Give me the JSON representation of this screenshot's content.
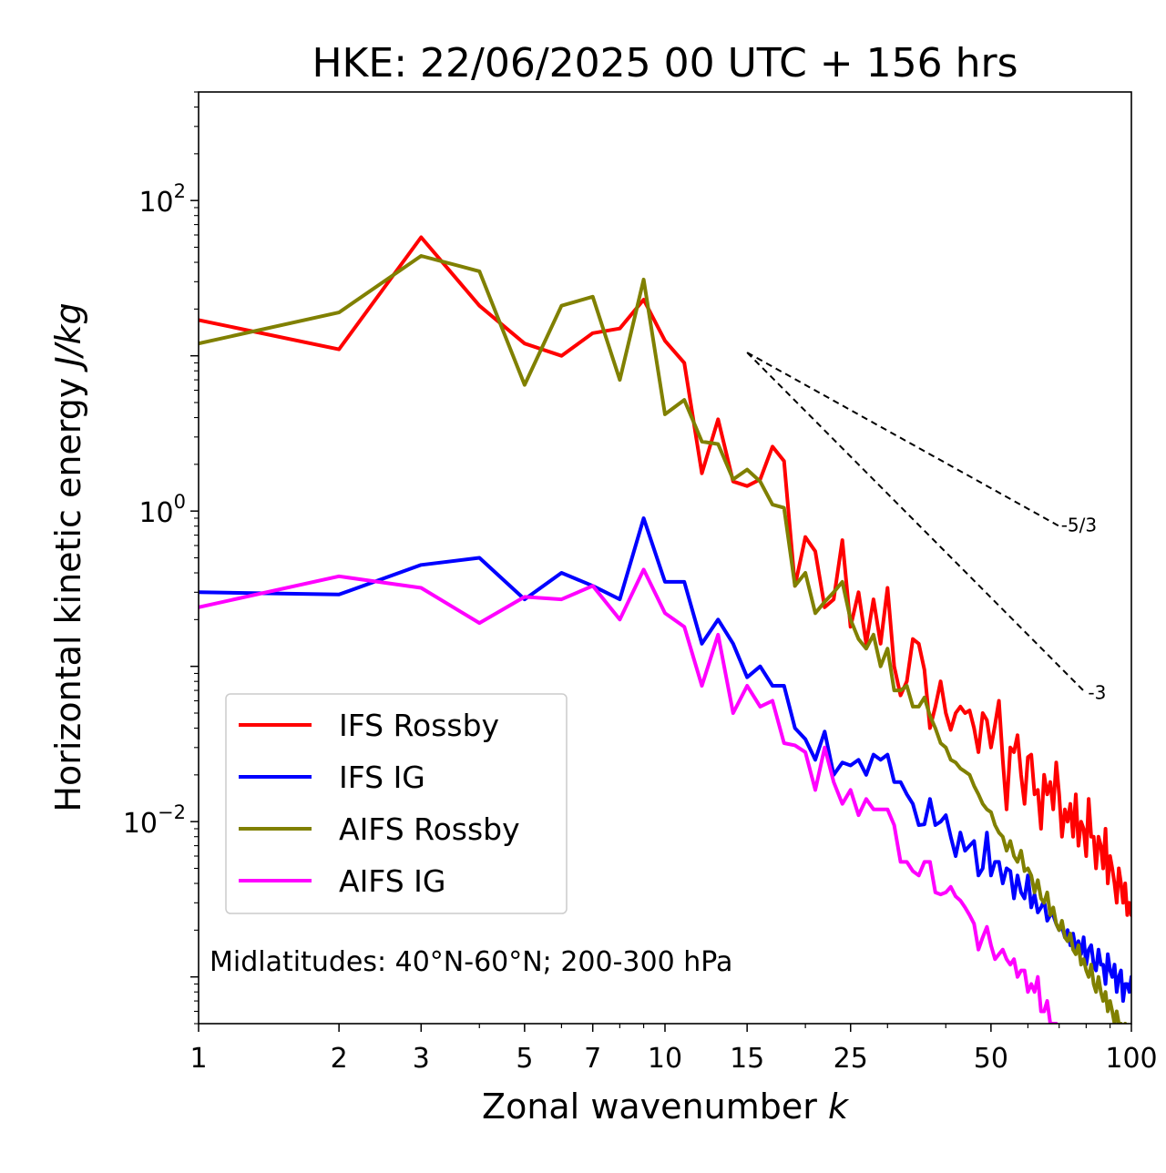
{
  "chart_data": {
    "type": "line",
    "title": "HKE: 22/06/2025 00 UTC + 156 hrs",
    "xlabel": "Zonal wavenumber",
    "xlabel_var": "k",
    "ylabel": "Horizontal kinetic energy",
    "ylabel_unit": "J/kg",
    "xscale": "log",
    "yscale": "log",
    "xlim": [
      1,
      100
    ],
    "ylim": [
      0.0005,
      500
    ],
    "x_ticks": [
      {
        "value": 1,
        "label": "1"
      },
      {
        "value": 2,
        "label": "2"
      },
      {
        "value": 3,
        "label": "3"
      },
      {
        "value": 5,
        "label": "5"
      },
      {
        "value": 7,
        "label": "7"
      },
      {
        "value": 10,
        "label": "10"
      },
      {
        "value": 15,
        "label": "15"
      },
      {
        "value": 25,
        "label": "25"
      },
      {
        "value": 50,
        "label": "50"
      },
      {
        "value": 100,
        "label": "100"
      }
    ],
    "y_ticks": [
      {
        "value": 100,
        "base": "10",
        "exp": "2"
      },
      {
        "value": 1,
        "base": "10",
        "exp": "0"
      },
      {
        "value": 0.01,
        "base": "10",
        "exp": "−2"
      }
    ],
    "grid": false,
    "legend_position": "lower-left",
    "annotation": "Midlatitudes: 40°N-60°N; 200-300 hPa",
    "reference_lines": [
      {
        "label": "-5/3",
        "x": [
          15,
          70
        ],
        "y": [
          10.5,
          0.8
        ]
      },
      {
        "label": "-3",
        "x": [
          15,
          80
        ],
        "y": [
          10.5,
          0.067
        ]
      }
    ],
    "series": [
      {
        "name": "IFS Rossby",
        "color": "#ff0000",
        "x": [
          1,
          2,
          3,
          4,
          5,
          6,
          7,
          8,
          9,
          10,
          11,
          12,
          13,
          14,
          15,
          16,
          17,
          18,
          19,
          20,
          21,
          22,
          23,
          24,
          25,
          26,
          27,
          28,
          29,
          30,
          31,
          32,
          33,
          34,
          35,
          36,
          37,
          38,
          39,
          40,
          41,
          42,
          43,
          44,
          45,
          46,
          47,
          48,
          49,
          50,
          51,
          52,
          53,
          54,
          55,
          56,
          57,
          58,
          59,
          60,
          61,
          62,
          63,
          64,
          65,
          66,
          67,
          68,
          69,
          70,
          71,
          72,
          73,
          74,
          75,
          76,
          77,
          78,
          79,
          80,
          81,
          82,
          83,
          84,
          85,
          86,
          87,
          88,
          89,
          90,
          91,
          92,
          93,
          94,
          95,
          96,
          97,
          98,
          99,
          100
        ],
        "values": [
          17,
          11,
          58,
          21,
          12,
          10,
          14,
          15,
          23,
          12.5,
          9,
          1.75,
          3.9,
          1.55,
          1.45,
          1.6,
          2.6,
          2.1,
          0.33,
          0.68,
          0.55,
          0.24,
          0.27,
          0.65,
          0.18,
          0.3,
          0.14,
          0.27,
          0.14,
          0.32,
          0.1,
          0.065,
          0.08,
          0.15,
          0.14,
          0.095,
          0.04,
          0.055,
          0.08,
          0.05,
          0.039,
          0.05,
          0.055,
          0.05,
          0.052,
          0.04,
          0.028,
          0.05,
          0.045,
          0.03,
          0.042,
          0.06,
          0.025,
          0.012,
          0.03,
          0.028,
          0.036,
          0.02,
          0.013,
          0.026,
          0.027,
          0.015,
          0.016,
          0.009,
          0.02,
          0.015,
          0.018,
          0.012,
          0.024,
          0.015,
          0.008,
          0.012,
          0.01,
          0.013,
          0.008,
          0.015,
          0.007,
          0.01,
          0.009,
          0.006,
          0.014,
          0.008,
          0.008,
          0.005,
          0.008,
          0.007,
          0.005,
          0.009,
          0.004,
          0.006,
          0.005,
          0.004,
          0.003,
          0.005,
          0.004,
          0.003,
          0.004,
          0.0025,
          0.003,
          0.0025
        ]
      },
      {
        "name": "IFS IG",
        "color": "#0000ff",
        "x": [
          1,
          2,
          3,
          4,
          5,
          6,
          7,
          8,
          9,
          10,
          11,
          12,
          13,
          14,
          15,
          16,
          17,
          18,
          19,
          20,
          21,
          22,
          23,
          24,
          25,
          26,
          27,
          28,
          29,
          30,
          31,
          32,
          33,
          34,
          35,
          36,
          37,
          38,
          39,
          40,
          41,
          42,
          43,
          44,
          45,
          46,
          47,
          48,
          49,
          50,
          51,
          52,
          53,
          54,
          55,
          56,
          57,
          58,
          59,
          60,
          61,
          62,
          63,
          64,
          65,
          66,
          67,
          68,
          69,
          70,
          71,
          72,
          73,
          74,
          75,
          76,
          77,
          78,
          79,
          80,
          81,
          82,
          83,
          84,
          85,
          86,
          87,
          88,
          89,
          90,
          91,
          92,
          93,
          94,
          95,
          96,
          97,
          98,
          99,
          100
        ],
        "values": [
          0.3,
          0.29,
          0.45,
          0.5,
          0.27,
          0.4,
          0.33,
          0.27,
          0.9,
          0.35,
          0.35,
          0.14,
          0.2,
          0.14,
          0.085,
          0.1,
          0.075,
          0.075,
          0.04,
          0.034,
          0.025,
          0.038,
          0.02,
          0.024,
          0.023,
          0.025,
          0.02,
          0.027,
          0.025,
          0.027,
          0.018,
          0.018,
          0.015,
          0.013,
          0.0095,
          0.0096,
          0.014,
          0.0095,
          0.01,
          0.011,
          0.008,
          0.006,
          0.0085,
          0.0065,
          0.007,
          0.0075,
          0.0045,
          0.005,
          0.0085,
          0.0045,
          0.0055,
          0.0055,
          0.004,
          0.005,
          0.0048,
          0.0032,
          0.0045,
          0.0035,
          0.0032,
          0.0045,
          0.0028,
          0.0034,
          0.0026,
          0.0028,
          0.0031,
          0.0023,
          0.0025,
          0.0025,
          0.0022,
          0.002,
          0.0021,
          0.0018,
          0.002,
          0.0016,
          0.0019,
          0.0015,
          0.0017,
          0.0014,
          0.0018,
          0.0012,
          0.0015,
          0.0016,
          0.0012,
          0.0011,
          0.0015,
          0.0012,
          0.0012,
          0.0009,
          0.0014,
          0.0011,
          0.001,
          0.0012,
          0.0008,
          0.001,
          0.0011,
          0.0007,
          0.0009,
          0.0009,
          0.0008,
          0.001
        ]
      },
      {
        "name": "AIFS Rossby",
        "color": "#808000",
        "x": [
          1,
          2,
          3,
          4,
          5,
          6,
          7,
          8,
          9,
          10,
          11,
          12,
          13,
          14,
          15,
          16,
          17,
          18,
          19,
          20,
          21,
          22,
          23,
          24,
          25,
          26,
          27,
          28,
          29,
          30,
          31,
          32,
          33,
          34,
          35,
          36,
          37,
          38,
          39,
          40,
          41,
          42,
          43,
          44,
          45,
          46,
          47,
          48,
          49,
          50,
          51,
          52,
          53,
          54,
          55,
          56,
          57,
          58,
          59,
          60,
          61,
          62,
          63,
          64,
          65,
          66,
          67,
          68,
          69,
          70,
          71,
          72,
          73,
          74,
          75,
          76,
          77,
          78,
          79,
          80,
          81,
          82,
          83,
          84,
          85,
          86,
          87,
          88,
          89,
          90,
          91,
          92,
          93,
          94,
          95,
          96,
          97,
          98,
          99,
          100
        ],
        "values": [
          12,
          19,
          44,
          35,
          6.5,
          21,
          24,
          7,
          31,
          4.2,
          5.2,
          2.8,
          2.7,
          1.6,
          1.85,
          1.55,
          1.1,
          1.05,
          0.33,
          0.4,
          0.22,
          0.26,
          0.3,
          0.35,
          0.2,
          0.15,
          0.13,
          0.16,
          0.1,
          0.13,
          0.07,
          0.07,
          0.075,
          0.055,
          0.055,
          0.063,
          0.048,
          0.04,
          0.032,
          0.03,
          0.025,
          0.024,
          0.022,
          0.021,
          0.02,
          0.017,
          0.015,
          0.013,
          0.012,
          0.0115,
          0.0095,
          0.0085,
          0.008,
          0.0065,
          0.0075,
          0.006,
          0.0055,
          0.0065,
          0.0048,
          0.005,
          0.0045,
          0.0035,
          0.0042,
          0.0032,
          0.003,
          0.0035,
          0.0025,
          0.0028,
          0.0022,
          0.002,
          0.0023,
          0.0018,
          0.0017,
          0.0019,
          0.0015,
          0.0014,
          0.0016,
          0.0012,
          0.0013,
          0.0011,
          0.001,
          0.0012,
          0.0009,
          0.0008,
          0.001,
          0.0008,
          0.0007,
          0.0008,
          0.0006,
          0.0007,
          0.0006,
          0.0005,
          0.0006,
          0.0005,
          0.0005,
          0.0004,
          0.0005,
          0.0004,
          0.0004,
          0.0004
        ]
      },
      {
        "name": "AIFS IG",
        "color": "#ff00ff",
        "x": [
          1,
          2,
          3,
          4,
          5,
          6,
          7,
          8,
          9,
          10,
          11,
          12,
          13,
          14,
          15,
          16,
          17,
          18,
          19,
          20,
          21,
          22,
          23,
          24,
          25,
          26,
          27,
          28,
          29,
          30,
          31,
          32,
          33,
          34,
          35,
          36,
          37,
          38,
          39,
          40,
          41,
          42,
          43,
          44,
          45,
          46,
          47,
          48,
          49,
          50,
          51,
          52,
          53,
          54,
          55,
          56,
          57,
          58,
          59,
          60,
          61,
          62,
          63,
          64,
          65,
          66,
          67,
          68,
          69,
          70
        ],
        "values": [
          0.24,
          0.38,
          0.32,
          0.19,
          0.28,
          0.27,
          0.33,
          0.2,
          0.42,
          0.22,
          0.18,
          0.075,
          0.16,
          0.05,
          0.075,
          0.055,
          0.06,
          0.032,
          0.031,
          0.028,
          0.016,
          0.03,
          0.018,
          0.013,
          0.016,
          0.011,
          0.014,
          0.012,
          0.012,
          0.012,
          0.0095,
          0.0055,
          0.0055,
          0.0048,
          0.0045,
          0.0055,
          0.0055,
          0.0035,
          0.0034,
          0.0035,
          0.0038,
          0.0033,
          0.0031,
          0.0028,
          0.0025,
          0.0022,
          0.0015,
          0.0018,
          0.0021,
          0.0016,
          0.0013,
          0.0014,
          0.0015,
          0.0013,
          0.0012,
          0.0013,
          0.001,
          0.0011,
          0.0011,
          0.0008,
          0.0009,
          0.0008,
          0.001,
          0.0006,
          0.0006,
          0.0007,
          0.0005,
          0.0005,
          0.0005,
          0.0004
        ]
      }
    ]
  }
}
